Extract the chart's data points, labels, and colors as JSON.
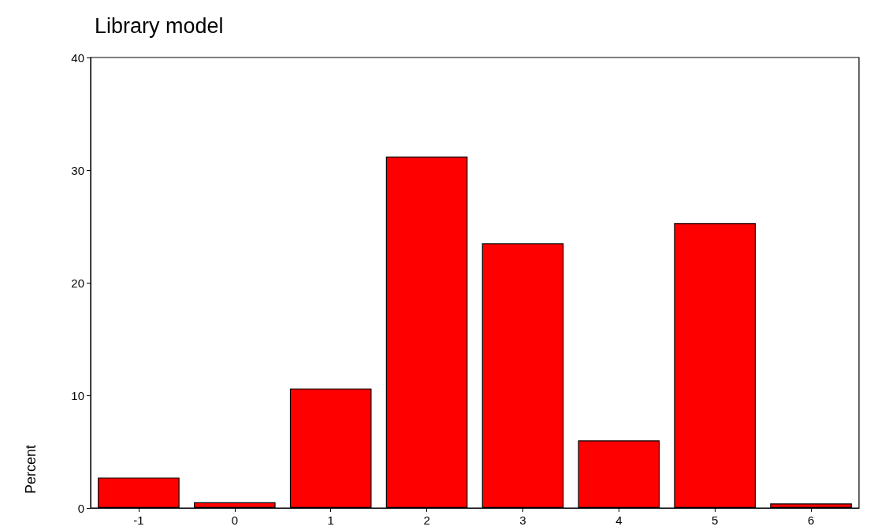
{
  "chart_data": {
    "type": "bar",
    "title": "Library model",
    "ylabel": "Percent",
    "categories": [
      "-1",
      "0",
      "1",
      "2",
      "3",
      "4",
      "5",
      "6"
    ],
    "values": [
      2.7,
      0.5,
      10.6,
      31.2,
      23.5,
      6.0,
      25.3,
      0.4
    ],
    "color": "#ff0000",
    "ylim": [
      0,
      40
    ],
    "yticks": [
      0,
      10,
      20,
      30,
      40
    ],
    "grid": false
  }
}
